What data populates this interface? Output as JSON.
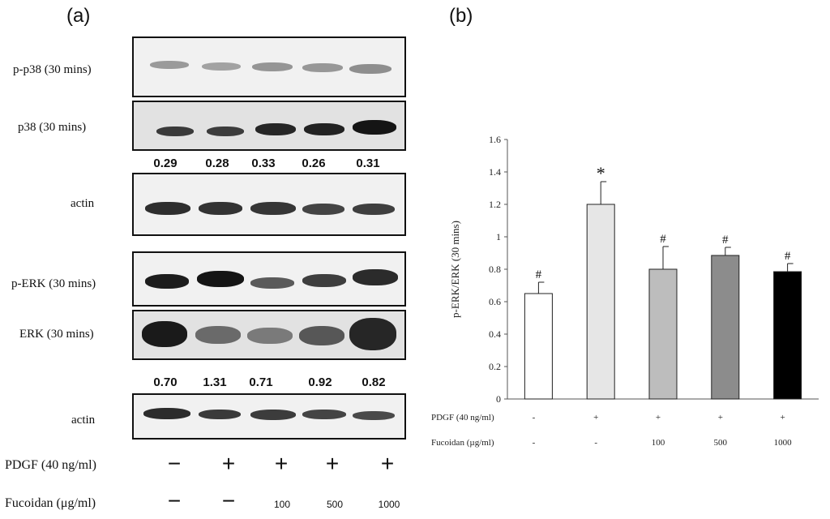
{
  "panel_a": {
    "letter": "(a)",
    "blots": [
      {
        "label": "p-p38 (30 mins)"
      },
      {
        "label": "p38 (30 mins)"
      },
      {
        "label": "actin"
      },
      {
        "label": "p-ERK (30 mins)"
      },
      {
        "label": "ERK (30 mins)"
      },
      {
        "label": "actin"
      }
    ],
    "ratios_p38": [
      "0.29",
      "0.28",
      "0.33",
      "0.26",
      "0.31"
    ],
    "ratios_erk": [
      "0.70",
      "1.31",
      "0.71",
      "0.92",
      "0.82"
    ],
    "pdgf_label": "PDGF (40 ng/ml)",
    "pdgf_signs": [
      "−",
      "+",
      "+",
      "+",
      "+"
    ],
    "fucoidan_label": "Fucoidan (μg/ml)",
    "fucoidan_values": [
      "−",
      "−",
      "100",
      "500",
      "1000"
    ]
  },
  "panel_b": {
    "letter": "(b)",
    "pdgf_label": "PDGF (40 ng/ml)",
    "pdgf_values": [
      "-",
      "+",
      "+",
      "+",
      "+"
    ],
    "fucoidan_label": "Fucoidan (µg/ml)",
    "fucoidan_values": [
      "-",
      "-",
      "100",
      "500",
      "1000"
    ]
  },
  "chart_data": {
    "type": "bar",
    "title": "",
    "xlabel": "",
    "ylabel": "p-ERK/ERK (30 mins)",
    "ylim": [
      0,
      1.6
    ],
    "yticks": [
      "0",
      "0.2",
      "0.4",
      "0.6",
      "0.8",
      "1",
      "1.2",
      "1.4",
      "1.6"
    ],
    "categories": [
      "1",
      "2",
      "3",
      "4",
      "5"
    ],
    "values": [
      0.65,
      1.2,
      0.8,
      0.885,
      0.785
    ],
    "errors": [
      0.07,
      0.14,
      0.14,
      0.05,
      0.05
    ],
    "bar_colors": [
      "#ffffff",
      "#e6e6e6",
      "#bdbdbd",
      "#8c8c8c",
      "#000000"
    ],
    "significance": [
      "#",
      "*",
      "#",
      "#",
      "#"
    ],
    "grid": false
  }
}
